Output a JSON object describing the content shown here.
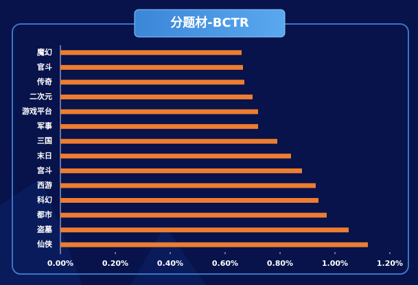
{
  "chart_data": {
    "type": "bar",
    "orientation": "horizontal",
    "title": "分题材-BCTR",
    "categories": [
      "魔幻",
      "官斗",
      "传奇",
      "二次元",
      "游戏平台",
      "军事",
      "三国",
      "末日",
      "宫斗",
      "西游",
      "科幻",
      "都市",
      "盗墓",
      "仙侠"
    ],
    "values": [
      0.66,
      0.665,
      0.67,
      0.7,
      0.72,
      0.72,
      0.79,
      0.84,
      0.88,
      0.93,
      0.94,
      0.97,
      1.05,
      1.12
    ],
    "color": "#ed7d31",
    "xlim": [
      0,
      1.2
    ],
    "xticks": [
      {
        "value": 0,
        "label": "0.00%"
      },
      {
        "value": 0.2,
        "label": "0.20%"
      },
      {
        "value": 0.4,
        "label": "0.40%"
      },
      {
        "value": 0.6,
        "label": "0.60%"
      },
      {
        "value": 0.8,
        "label": "0.80%"
      },
      {
        "value": 1.0,
        "label": "1.00%"
      },
      {
        "value": 1.2,
        "label": "1.20%"
      }
    ],
    "grid": false
  }
}
